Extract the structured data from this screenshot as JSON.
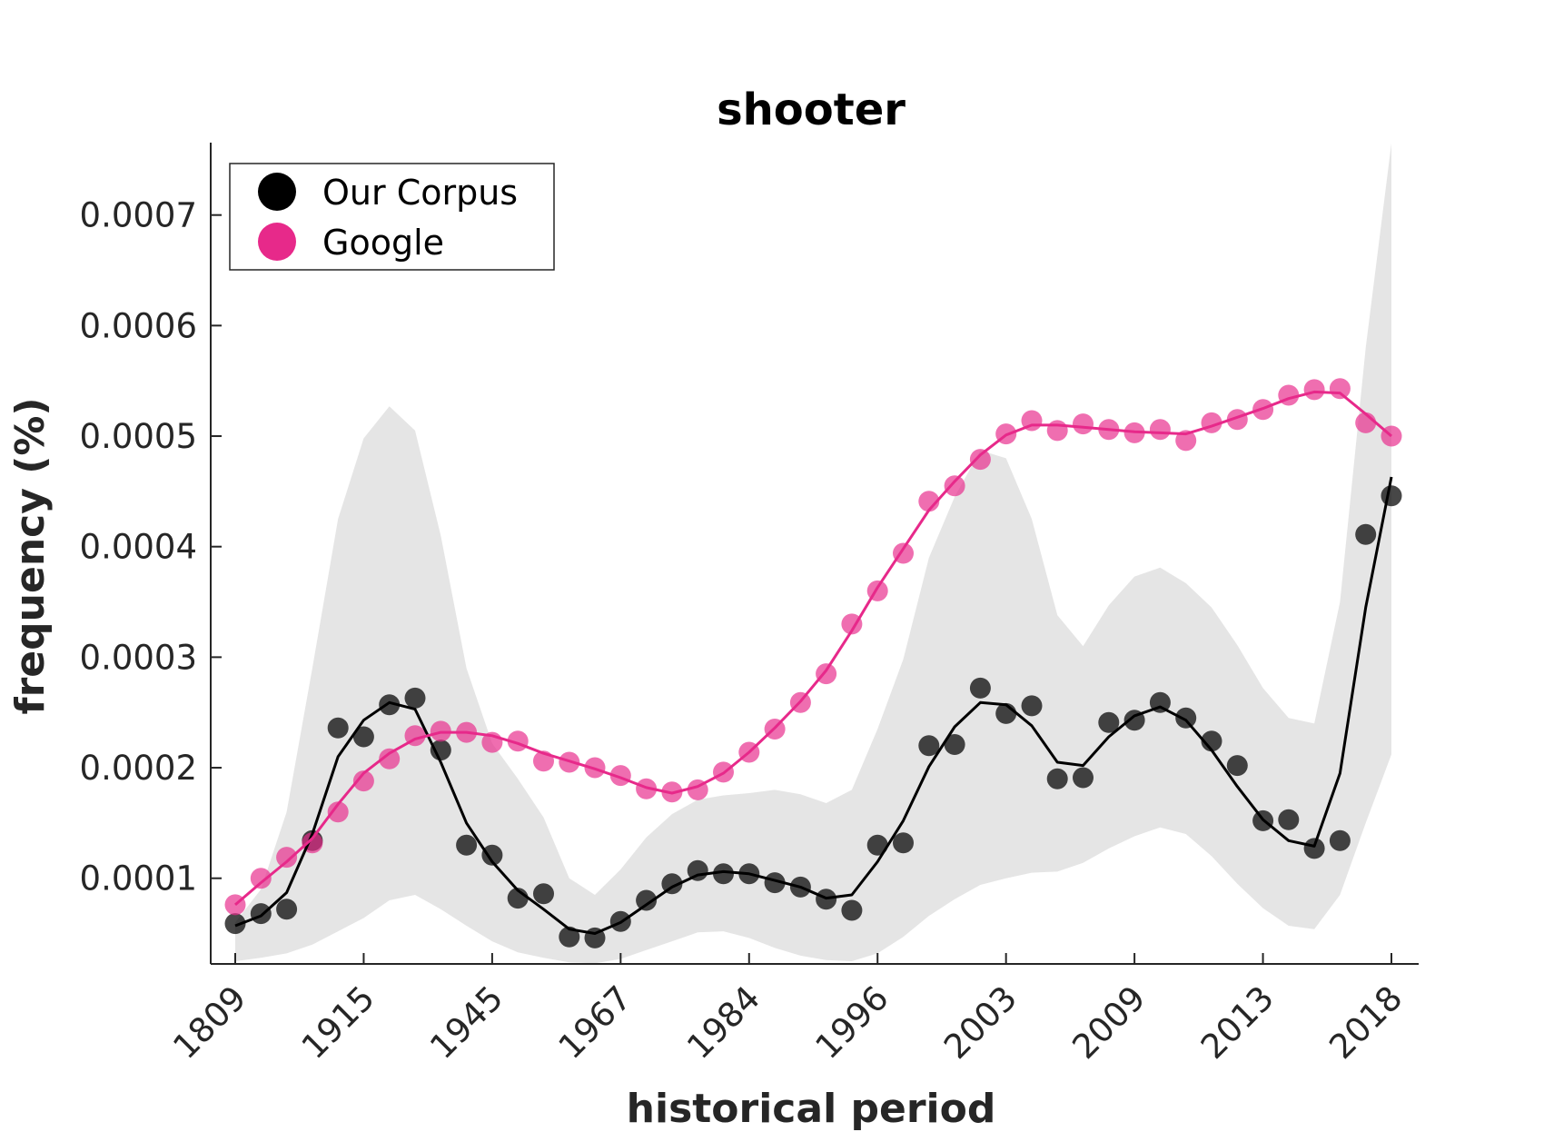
{
  "chart_data": {
    "type": "scatter",
    "title": "shooter",
    "xlabel": "historical period",
    "ylabel": "frequency (%)",
    "x_tick_labels": [
      "1809",
      "1915",
      "1945",
      "1967",
      "1984",
      "1996",
      "2003",
      "2009",
      "2013",
      "2018"
    ],
    "x_tick_indices": [
      0,
      5,
      10,
      15,
      20,
      25,
      30,
      35,
      40,
      45
    ],
    "n_points": 46,
    "yticks": [
      0.0001,
      0.0002,
      0.0003,
      0.0004,
      0.0005,
      0.0006,
      0.0007
    ],
    "ytick_labels": [
      "0.0001",
      "0.0002",
      "0.0003",
      "0.0004",
      "0.0005",
      "0.0006",
      "0.0007"
    ],
    "ylim": [
      2.25e-05,
      0.0007655
    ],
    "grid": false,
    "legend": {
      "position": "top-left",
      "entries": [
        "Our Corpus",
        "Google"
      ]
    },
    "series": [
      {
        "name": "Our Corpus",
        "color": "#000000",
        "points": [
          5.9e-05,
          6.8e-05,
          7.2e-05,
          0.000134,
          0.000236,
          0.000228,
          0.000257,
          0.000263,
          0.000216,
          0.00013,
          0.000121,
          8.2e-05,
          8.6e-05,
          4.7e-05,
          4.6e-05,
          6.1e-05,
          8e-05,
          9.5e-05,
          0.000107,
          0.000104,
          0.000104,
          9.6e-05,
          9.2e-05,
          8.1e-05,
          7.1e-05,
          0.00013,
          0.000132,
          0.00022,
          0.000221,
          0.000272,
          0.000249,
          0.000256,
          0.00019,
          0.000191,
          0.000241,
          0.000243,
          0.000259,
          0.000245,
          0.000224,
          0.000202,
          0.000152,
          0.000153,
          0.000127,
          0.000134,
          0.000411,
          0.000446
        ],
        "smooth": [
          5.7e-05,
          6.6e-05,
          8.7e-05,
          0.00014,
          0.00021,
          0.000243,
          0.000259,
          0.000253,
          0.000205,
          0.00015,
          0.000115,
          8.9e-05,
          7.2e-05,
          5.4e-05,
          5e-05,
          6e-05,
          7.6e-05,
          9.2e-05,
          0.000103,
          0.000106,
          0.000104,
          9.8e-05,
          9.2e-05,
          8.2e-05,
          8.5e-05,
          0.000115,
          0.000152,
          0.000201,
          0.000237,
          0.000259,
          0.000257,
          0.000238,
          0.000205,
          0.000202,
          0.000228,
          0.000247,
          0.000255,
          0.000243,
          0.000216,
          0.000183,
          0.000153,
          0.000134,
          0.000129,
          0.000195,
          0.000345,
          0.000463
        ]
      },
      {
        "name": "Google",
        "color": "#e7298a",
        "points": [
          7.6e-05,
          0.0001,
          0.000119,
          0.000132,
          0.00016,
          0.000188,
          0.000208,
          0.000229,
          0.000233,
          0.000232,
          0.000223,
          0.000224,
          0.000206,
          0.000205,
          0.0002,
          0.000193,
          0.000181,
          0.000178,
          0.00018,
          0.000196,
          0.000214,
          0.000235,
          0.000259,
          0.000285,
          0.00033,
          0.00036,
          0.000394,
          0.000441,
          0.000455,
          0.000479,
          0.000502,
          0.000514,
          0.000505,
          0.000511,
          0.000506,
          0.000503,
          0.000506,
          0.000496,
          0.000512,
          0.000515,
          0.000524,
          0.000537,
          0.000542,
          0.000543,
          0.000512,
          0.0005
        ],
        "smooth": [
          7.6e-05,
          9.6e-05,
          0.000115,
          0.000136,
          0.000167,
          0.000195,
          0.000213,
          0.000226,
          0.000232,
          0.000232,
          0.000229,
          0.000222,
          0.000213,
          0.000206,
          0.000199,
          0.000191,
          0.000182,
          0.000177,
          0.000183,
          0.000195,
          0.000214,
          0.000236,
          0.00026,
          0.000288,
          0.000324,
          0.000363,
          0.000398,
          0.000433,
          0.000459,
          0.000483,
          0.000501,
          0.00051,
          0.00051,
          0.000508,
          0.000506,
          0.000504,
          0.000503,
          0.000502,
          0.000509,
          0.000517,
          0.000525,
          0.000534,
          0.00054,
          0.000539,
          0.00052,
          0.0005
        ]
      }
    ],
    "band": {
      "color": "#e5e5e5",
      "upper": [
        6e-05,
        9e-05,
        0.00016,
        0.00029,
        0.000425,
        0.000498,
        0.000527,
        0.000505,
        0.00041,
        0.00029,
        0.000222,
        0.00019,
        0.000155,
        0.0001,
        8.5e-05,
        0.000108,
        0.000137,
        0.000158,
        0.000171,
        0.000175,
        0.000177,
        0.00018,
        0.000176,
        0.000168,
        0.00018,
        0.000235,
        0.000298,
        0.00039,
        0.000445,
        0.000487,
        0.00048,
        0.000425,
        0.000338,
        0.00031,
        0.000347,
        0.000373,
        0.000381,
        0.000367,
        0.000345,
        0.000311,
        0.000272,
        0.000245,
        0.00024,
        0.00035,
        0.00058,
        0.000765
      ],
      "lower": [
        2.5e-05,
        2.8e-05,
        3.2e-05,
        4e-05,
        5.2e-05,
        6.4e-05,
        8e-05,
        8.5e-05,
        7.2e-05,
        5.7e-05,
        4.3e-05,
        3.3e-05,
        2.8e-05,
        2.4e-05,
        2.3e-05,
        2.7e-05,
        3.5e-05,
        4.3e-05,
        5.1e-05,
        5.2e-05,
        4.6e-05,
        3.7e-05,
        3e-05,
        2.6e-05,
        2.5e-05,
        3.2e-05,
        4.7e-05,
        6.6e-05,
        8.1e-05,
        9.4e-05,
        0.0001,
        0.000105,
        0.000106,
        0.000114,
        0.000127,
        0.000138,
        0.000146,
        0.00014,
        0.00012,
        9.5e-05,
        7.3e-05,
        5.7e-05,
        5.4e-05,
        8.5e-05,
        0.00015,
        0.000212
      ]
    }
  }
}
